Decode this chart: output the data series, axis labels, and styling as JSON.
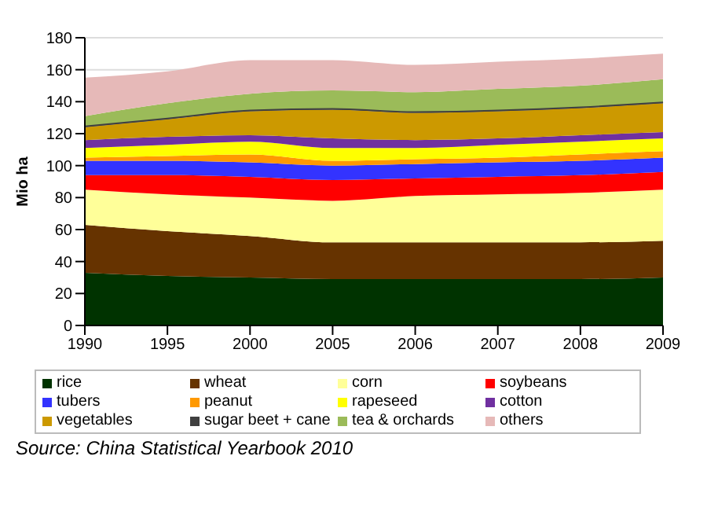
{
  "chart_data": {
    "type": "area",
    "stacked": true,
    "ylabel": "Mio ha",
    "categories": [
      "1990",
      "1995",
      "2000",
      "2005",
      "2006",
      "2007",
      "2008",
      "2009"
    ],
    "ylim": [
      0,
      180
    ],
    "yticks": [
      0,
      20,
      40,
      60,
      80,
      100,
      120,
      140,
      160,
      180
    ],
    "grid": "y",
    "legend": "bottom",
    "annotations": [
      "Source: China Statistical Yearbook 2010"
    ],
    "series": [
      {
        "name": "rice",
        "color": "#003300",
        "values": [
          33,
          31,
          30,
          29,
          29,
          29,
          29,
          30
        ]
      },
      {
        "name": "wheat",
        "color": "#663300",
        "values": [
          30,
          28,
          26,
          23,
          23,
          23,
          23,
          23
        ]
      },
      {
        "name": "corn",
        "color": "#ffff99",
        "values": [
          22,
          23,
          24,
          26,
          29,
          30,
          31,
          32
        ]
      },
      {
        "name": "soybeans",
        "color": "#ff0000",
        "values": [
          9,
          12,
          13,
          13,
          11,
          11,
          11,
          11
        ]
      },
      {
        "name": "tubers",
        "color": "#3333ff",
        "values": [
          9,
          9,
          9,
          9,
          9,
          9,
          9,
          9
        ]
      },
      {
        "name": "peanut",
        "color": "#ff9900",
        "values": [
          2,
          3,
          5,
          3,
          3,
          3,
          4,
          4
        ]
      },
      {
        "name": "rapeseed",
        "color": "#ffff00",
        "values": [
          6,
          7,
          8,
          8,
          7,
          8,
          8,
          8
        ]
      },
      {
        "name": "cotton",
        "color": "#7030a0",
        "values": [
          5,
          5,
          4,
          6,
          5,
          4,
          4,
          4
        ]
      },
      {
        "name": "vegetables",
        "color": "#cc9900",
        "values": [
          8,
          11,
          15,
          18,
          17,
          17,
          17,
          18
        ]
      },
      {
        "name": "sugar beet + cane",
        "color": "#404040",
        "values": [
          1,
          1,
          1,
          1,
          1,
          1,
          1,
          1
        ]
      },
      {
        "name": "tea & orchards",
        "color": "#9bbb59",
        "values": [
          6,
          9,
          10,
          11,
          12,
          13,
          13,
          14
        ]
      },
      {
        "name": "others",
        "color": "#e6b9b8",
        "values": [
          24,
          20,
          21,
          19,
          17,
          17,
          17,
          16
        ]
      }
    ]
  }
}
